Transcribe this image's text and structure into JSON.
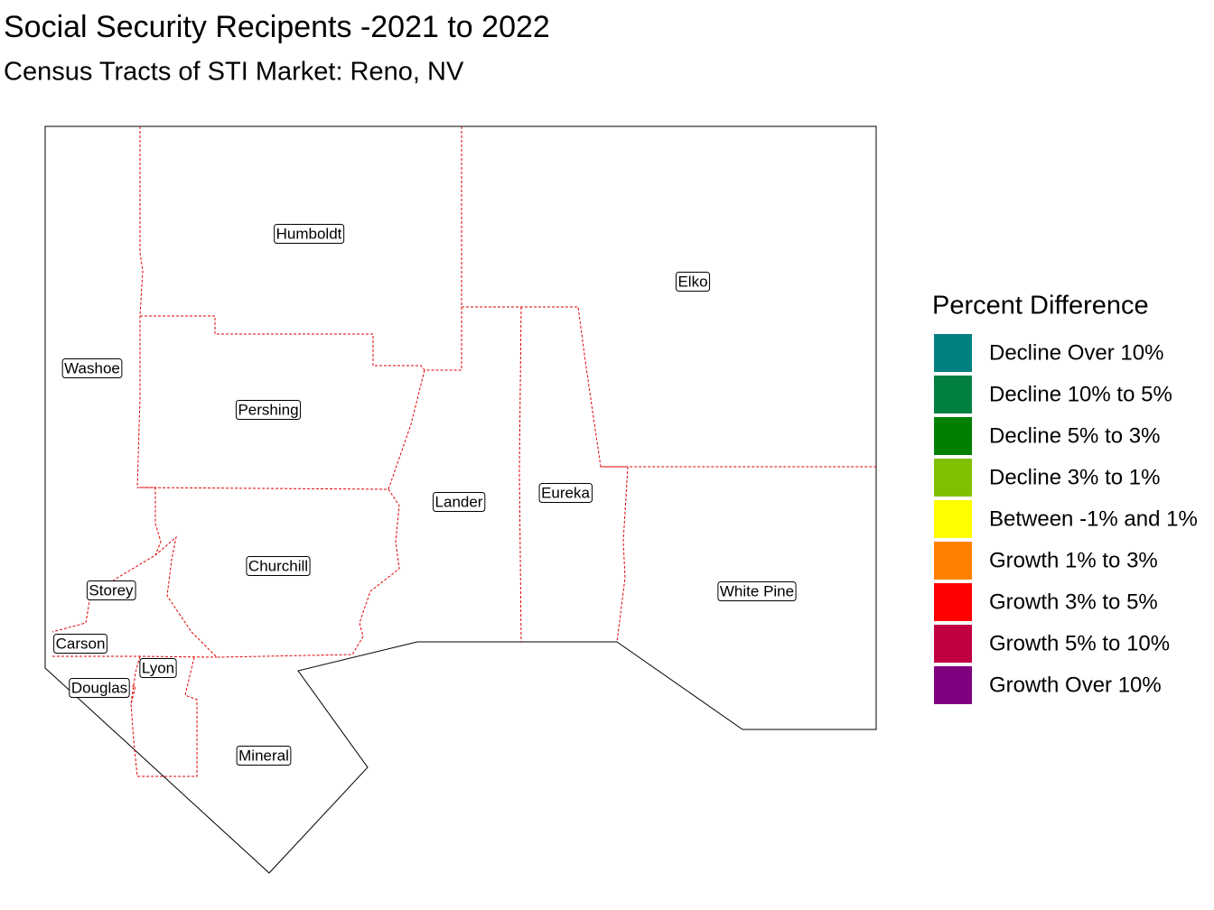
{
  "title": "Social Security Recipents -2021 to 2022",
  "subtitle": "Census Tracts of STI Market: Reno, NV",
  "counties": [
    {
      "label": "Humboldt"
    },
    {
      "label": "Elko"
    },
    {
      "label": "Washoe"
    },
    {
      "label": "Pershing"
    },
    {
      "label": "Lander"
    },
    {
      "label": "Eureka"
    },
    {
      "label": "Churchill"
    },
    {
      "label": "Storey"
    },
    {
      "label": "White Pine"
    },
    {
      "label": "Carson"
    },
    {
      "label": "Lyon"
    },
    {
      "label": "Douglas"
    },
    {
      "label": "Mineral"
    }
  ],
  "legend": {
    "title": "Percent Difference",
    "items": [
      {
        "label": "Decline Over 10%",
        "color": "#008080"
      },
      {
        "label": "Decline 10% to 5%",
        "color": "#008040"
      },
      {
        "label": "Decline 5% to 3%",
        "color": "#008000"
      },
      {
        "label": "Decline 3% to 1%",
        "color": "#80c000"
      },
      {
        "label": "Between -1% and 1%",
        "color": "#ffff00"
      },
      {
        "label": "Growth 1% to 3%",
        "color": "#ff8000"
      },
      {
        "label": "Growth 3% to 5%",
        "color": "#ff0000"
      },
      {
        "label": "Growth 5% to 10%",
        "color": "#c00040"
      },
      {
        "label": "Growth Over 10%",
        "color": "#800080"
      }
    ]
  }
}
